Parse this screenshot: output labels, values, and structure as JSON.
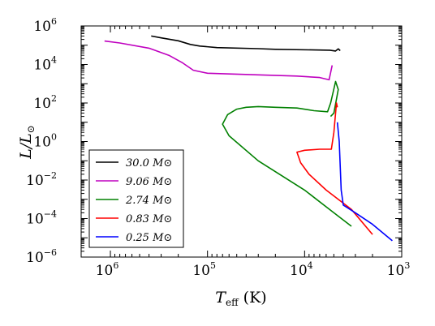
{
  "chart_data": {
    "type": "line",
    "title": "",
    "xlabel": {
      "main": "T",
      "sub": "eff",
      "unit": " (K)"
    },
    "ylabel": {
      "num": "L",
      "den": "L",
      "den_sub": "⊙"
    },
    "x_scale": "log",
    "y_scale": "log",
    "x_inverted": true,
    "xlim": [
      2000000,
      1000
    ],
    "ylim": [
      1e-06,
      1000000.0
    ],
    "x_ticks": [
      {
        "value": 1000000,
        "base": "10",
        "exp": "6"
      },
      {
        "value": 100000,
        "base": "10",
        "exp": "5"
      },
      {
        "value": 10000,
        "base": "10",
        "exp": "4"
      },
      {
        "value": 1000,
        "base": "10",
        "exp": "3"
      }
    ],
    "y_ticks": [
      {
        "value": 1e-06,
        "base": "10",
        "exp": "−6"
      },
      {
        "value": 0.0001,
        "base": "10",
        "exp": "−4"
      },
      {
        "value": 0.01,
        "base": "10",
        "exp": "−2"
      },
      {
        "value": 1,
        "base": "10",
        "exp": "0"
      },
      {
        "value": 100,
        "base": "10",
        "exp": "2"
      },
      {
        "value": 10000,
        "base": "10",
        "exp": "4"
      },
      {
        "value": 1000000,
        "base": "10",
        "exp": "6"
      }
    ],
    "grid": false,
    "legend_position": "lower-left",
    "series": [
      {
        "name": "30.0 M⊙",
        "color": "#000000",
        "points": [
          [
            380000,
            300000
          ],
          [
            300000,
            240000
          ],
          [
            200000,
            170000
          ],
          [
            150000,
            110000
          ],
          [
            120000,
            90000
          ],
          [
            80000,
            75000
          ],
          [
            30000,
            66000
          ],
          [
            20000,
            61000
          ],
          [
            5500,
            55000
          ],
          [
            4800,
            50000
          ],
          [
            4500,
            65000
          ],
          [
            4300,
            52000
          ]
        ]
      },
      {
        "name": "9.06 M⊙",
        "color": "#bf00bf",
        "points": [
          [
            1150000,
            165000
          ],
          [
            800000,
            130000
          ],
          [
            400000,
            70000
          ],
          [
            250000,
            30000
          ],
          [
            180000,
            12000
          ],
          [
            140000,
            5000
          ],
          [
            100000,
            3500
          ],
          [
            30000,
            2900
          ],
          [
            12000,
            2500
          ],
          [
            7000,
            2100
          ],
          [
            5600,
            1600
          ],
          [
            5200,
            9000
          ]
        ]
      },
      {
        "name": "2.74 M⊙",
        "color": "#008000",
        "points": [
          [
            3300,
            4e-05
          ],
          [
            5000,
            0.0002
          ],
          [
            10000,
            0.003
          ],
          [
            30000,
            0.1
          ],
          [
            60000,
            2
          ],
          [
            70000,
            8
          ],
          [
            62000,
            25
          ],
          [
            50000,
            48
          ],
          [
            40000,
            60
          ],
          [
            30000,
            65
          ],
          [
            20000,
            60
          ],
          [
            12000,
            55
          ],
          [
            8000,
            40
          ],
          [
            5800,
            35
          ],
          [
            5400,
            100
          ],
          [
            4800,
            1300
          ],
          [
            4500,
            500
          ],
          [
            5000,
            30
          ],
          [
            5400,
            20
          ]
        ]
      },
      {
        "name": "0.83 M⊙",
        "color": "#ff0000",
        "points": [
          [
            2000,
            1.5e-05
          ],
          [
            3300,
            0.0003
          ],
          [
            6000,
            0.003
          ],
          [
            9000,
            0.02
          ],
          [
            11000,
            0.08
          ],
          [
            12000,
            0.28
          ],
          [
            10000,
            0.35
          ],
          [
            7000,
            0.4
          ],
          [
            5300,
            0.4
          ],
          [
            5000,
            3
          ],
          [
            4700,
            100
          ],
          [
            4600,
            60
          ]
        ]
      },
      {
        "name": "0.25 M⊙",
        "color": "#0000ff",
        "points": [
          [
            1250,
            7e-06
          ],
          [
            2000,
            5e-05
          ],
          [
            3000,
            0.0002
          ],
          [
            4000,
            0.0005
          ],
          [
            4200,
            0.003
          ],
          [
            4400,
            1
          ],
          [
            4600,
            10
          ]
        ]
      }
    ]
  }
}
